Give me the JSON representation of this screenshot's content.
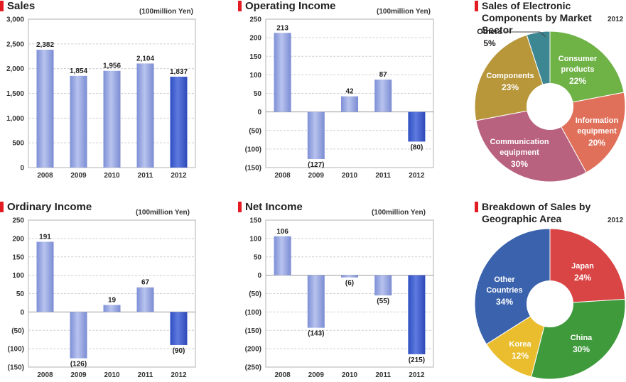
{
  "chart_data": [
    {
      "type": "bar",
      "id": "sales",
      "title": "Sales",
      "unit": "(100million Yen)",
      "categories": [
        "2008",
        "2009",
        "2010",
        "2011",
        "2012"
      ],
      "values": [
        2382,
        1854,
        1956,
        2104,
        1837
      ],
      "value_labels": [
        "2,382",
        "1,854",
        "1,956",
        "2,104",
        "1,837"
      ],
      "ylim": [
        0,
        3000
      ],
      "ticks": [
        {
          "v": 0,
          "label": "0"
        },
        {
          "v": 500,
          "label": "500"
        },
        {
          "v": 1000,
          "label": "1,000"
        },
        {
          "v": 1500,
          "label": "1,500"
        },
        {
          "v": 2000,
          "label": "2,000"
        },
        {
          "v": 2500,
          "label": "2,500"
        },
        {
          "v": 3000,
          "label": "3,000"
        }
      ]
    },
    {
      "type": "bar",
      "id": "operating-income",
      "title": "Operating Income",
      "unit": "(100million Yen)",
      "categories": [
        "2008",
        "2009",
        "2010",
        "2011",
        "2012"
      ],
      "values": [
        213,
        -127,
        42,
        87,
        -80
      ],
      "value_labels": [
        "213",
        "(127)",
        "42",
        "87",
        "(80)"
      ],
      "ylim": [
        -150,
        250
      ],
      "ticks": [
        {
          "v": -150,
          "label": "(150)"
        },
        {
          "v": -100,
          "label": "(100)"
        },
        {
          "v": -50,
          "label": "(50)"
        },
        {
          "v": 0,
          "label": "0"
        },
        {
          "v": 50,
          "label": "50"
        },
        {
          "v": 100,
          "label": "100"
        },
        {
          "v": 150,
          "label": "150"
        },
        {
          "v": 200,
          "label": "200"
        },
        {
          "v": 250,
          "label": "250"
        }
      ]
    },
    {
      "type": "bar",
      "id": "ordinary-income",
      "title": "Ordinary Income",
      "unit": "(100million Yen)",
      "categories": [
        "2008",
        "2009",
        "2010",
        "2011",
        "2012"
      ],
      "values": [
        191,
        -126,
        19,
        67,
        -90
      ],
      "value_labels": [
        "191",
        "(126)",
        "19",
        "67",
        "(90)"
      ],
      "ylim": [
        -150,
        250
      ],
      "ticks": [
        {
          "v": -150,
          "label": "(150)"
        },
        {
          "v": -100,
          "label": "(100)"
        },
        {
          "v": -50,
          "label": "(50)"
        },
        {
          "v": 0,
          "label": "0"
        },
        {
          "v": 50,
          "label": "50"
        },
        {
          "v": 100,
          "label": "100"
        },
        {
          "v": 150,
          "label": "150"
        },
        {
          "v": 200,
          "label": "200"
        },
        {
          "v": 250,
          "label": "250"
        }
      ]
    },
    {
      "type": "bar",
      "id": "net-income",
      "title": "Net Income",
      "unit": "(100million Yen)",
      "categories": [
        "2008",
        "2009",
        "2010",
        "2011",
        "2012"
      ],
      "values": [
        106,
        -143,
        -6,
        -55,
        -215
      ],
      "value_labels": [
        "106",
        "(143)",
        "(6)",
        "(55)",
        "(215)"
      ],
      "ylim": [
        -250,
        150
      ],
      "ticks": [
        {
          "v": -250,
          "label": "(250)"
        },
        {
          "v": -200,
          "label": "(200)"
        },
        {
          "v": -150,
          "label": "(150)"
        },
        {
          "v": -100,
          "label": "(100)"
        },
        {
          "v": -50,
          "label": "(50)"
        },
        {
          "v": 0,
          "label": "0"
        },
        {
          "v": 50,
          "label": "50"
        },
        {
          "v": 100,
          "label": "100"
        },
        {
          "v": 150,
          "label": "150"
        }
      ]
    },
    {
      "type": "pie",
      "id": "market-sector",
      "title": "Sales of Electronic Components by Market Sector",
      "year": "2012",
      "slices": [
        {
          "name": "Consumer products",
          "value": 22,
          "label": "22%",
          "color": "#6fb246"
        },
        {
          "name": "Information equipment",
          "value": 20,
          "label": "20%",
          "color": "#e0705a"
        },
        {
          "name": "Communication equipment",
          "value": 30,
          "label": "30%",
          "color": "#b9627f"
        },
        {
          "name": "Components",
          "value": 23,
          "label": "23%",
          "color": "#b8963a"
        },
        {
          "name": "Others",
          "value": 5,
          "label": "5%",
          "color": "#3d8792"
        }
      ]
    },
    {
      "type": "pie",
      "id": "geographic",
      "title": "Breakdown of Sales by Geographic Area",
      "year": "2012",
      "slices": [
        {
          "name": "Japan",
          "value": 24,
          "label": "24%",
          "color": "#d94444"
        },
        {
          "name": "China",
          "value": 30,
          "label": "30%",
          "color": "#3f9a3c"
        },
        {
          "name": "Korea",
          "value": 12,
          "label": "12%",
          "color": "#e9bd2e"
        },
        {
          "name": "Other Countries",
          "value": 34,
          "label": "34%",
          "color": "#3b63ad"
        }
      ]
    }
  ]
}
